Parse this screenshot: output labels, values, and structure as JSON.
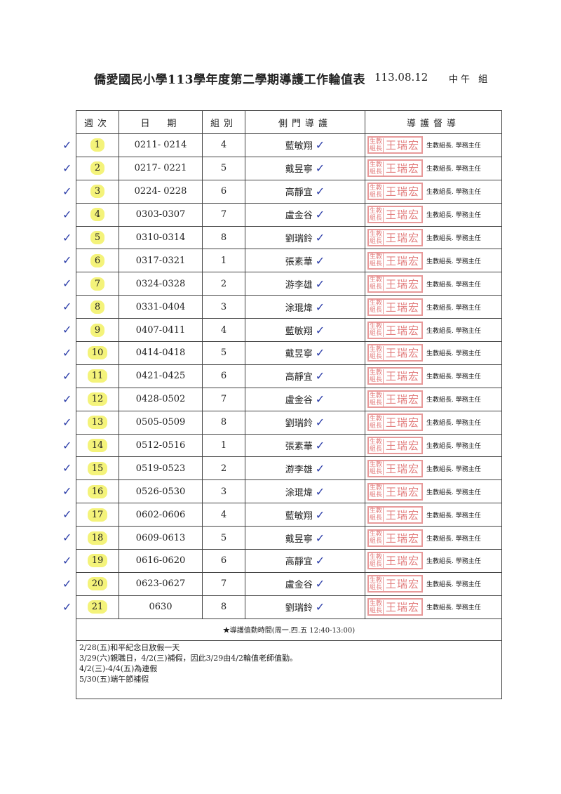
{
  "header": {
    "title": "僑愛國民小學113學年度第二學期導護工作輪值表",
    "date": "113.08.12",
    "group": "中午 組"
  },
  "columns": [
    "週次",
    "日　期",
    "組別",
    "側門導護",
    "導護督導"
  ],
  "stamp": {
    "left": "生教組長",
    "name": "王瑞宏"
  },
  "supervisor": "生教組長. 學務主任",
  "rows": [
    {
      "week": "1",
      "dates": "0211- 0214",
      "group": "4",
      "name": "藍敏翔"
    },
    {
      "week": "2",
      "dates": "0217- 0221",
      "group": "5",
      "name": "戴昱寧"
    },
    {
      "week": "3",
      "dates": "0224- 0228",
      "group": "6",
      "name": "高靜宜"
    },
    {
      "week": "4",
      "dates": "0303-0307",
      "group": "7",
      "name": "盧金谷"
    },
    {
      "week": "5",
      "dates": "0310-0314",
      "group": "8",
      "name": "劉瑞鈴"
    },
    {
      "week": "6",
      "dates": "0317-0321",
      "group": "1",
      "name": "張素華"
    },
    {
      "week": "7",
      "dates": "0324-0328",
      "group": "2",
      "name": "游李雄"
    },
    {
      "week": "8",
      "dates": "0331-0404",
      "group": "3",
      "name": "涂琨煒"
    },
    {
      "week": "9",
      "dates": "0407-0411",
      "group": "4",
      "name": "藍敏翔"
    },
    {
      "week": "10",
      "dates": "0414-0418",
      "group": "5",
      "name": "戴昱寧"
    },
    {
      "week": "11",
      "dates": "0421-0425",
      "group": "6",
      "name": "高靜宜"
    },
    {
      "week": "12",
      "dates": "0428-0502",
      "group": "7",
      "name": "盧金谷"
    },
    {
      "week": "13",
      "dates": "0505-0509",
      "group": "8",
      "name": "劉瑞鈴"
    },
    {
      "week": "14",
      "dates": "0512-0516",
      "group": "1",
      "name": "張素華"
    },
    {
      "week": "15",
      "dates": "0519-0523",
      "group": "2",
      "name": "游李雄"
    },
    {
      "week": "16",
      "dates": "0526-0530",
      "group": "3",
      "name": "涂琨煒"
    },
    {
      "week": "17",
      "dates": "0602-0606",
      "group": "4",
      "name": "藍敏翔"
    },
    {
      "week": "18",
      "dates": "0609-0613",
      "group": "5",
      "name": "戴昱寧"
    },
    {
      "week": "19",
      "dates": "0616-0620",
      "group": "6",
      "name": "高靜宜"
    },
    {
      "week": "20",
      "dates": "0623-0627",
      "group": "7",
      "name": "盧金谷"
    },
    {
      "week": "21",
      "dates": "0630",
      "group": "8",
      "name": "劉瑞鈴"
    }
  ],
  "hours": "★導護值勤時間(周一.四.五 12:40-13:00)",
  "notes": [
    "2/28(五)和平紀念日放假一天",
    "3/29(六)親職日，4/2(三)補假，因此3/29由4/2輪值老師值勤。",
    "4/2(三)-4/4(五)為連假",
    "5/30(五)端午節補假"
  ],
  "colors": {
    "highlight": "#f4f37a",
    "check": "#2a3ca8",
    "stamp": "#e38080"
  }
}
